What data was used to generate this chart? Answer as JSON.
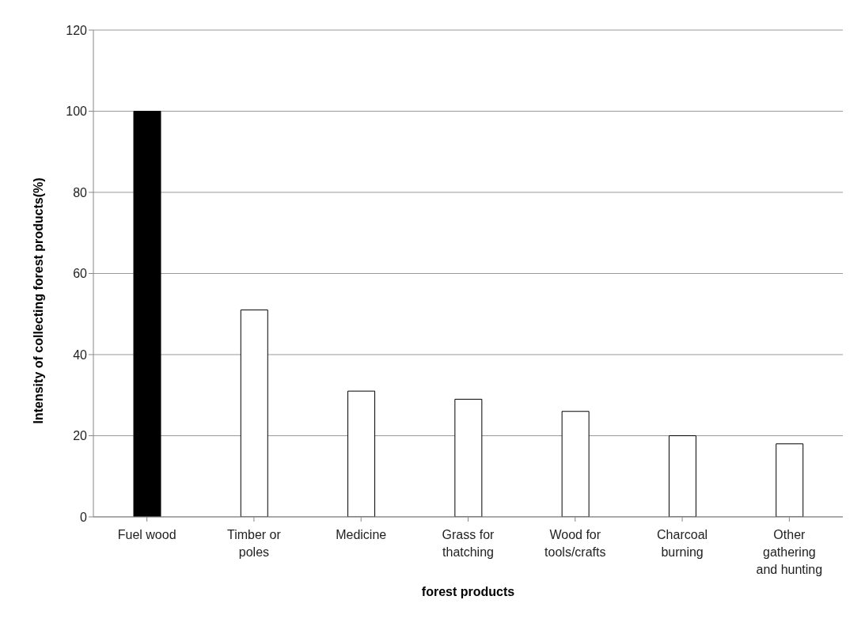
{
  "chart_data": {
    "type": "bar",
    "xlabel": "forest products",
    "ylabel": "Intensity of  collecting forest products(%)",
    "categories": [
      "Fuel wood",
      "Timber or poles",
      "Medicine",
      "Grass for thatching",
      "Wood for tools/crafts",
      "Charcoal burning",
      "Other gathering and hunting"
    ],
    "values": [
      100,
      51,
      31,
      29,
      26,
      20,
      18
    ],
    "colors": [
      "#000000",
      "#ffffff",
      "#ffffff",
      "#ffffff",
      "#ffffff",
      "#ffffff",
      "#ffffff"
    ],
    "ylim": [
      0,
      120
    ],
    "yticks": [
      0,
      20,
      40,
      60,
      80,
      100,
      120
    ],
    "grid": "y"
  }
}
